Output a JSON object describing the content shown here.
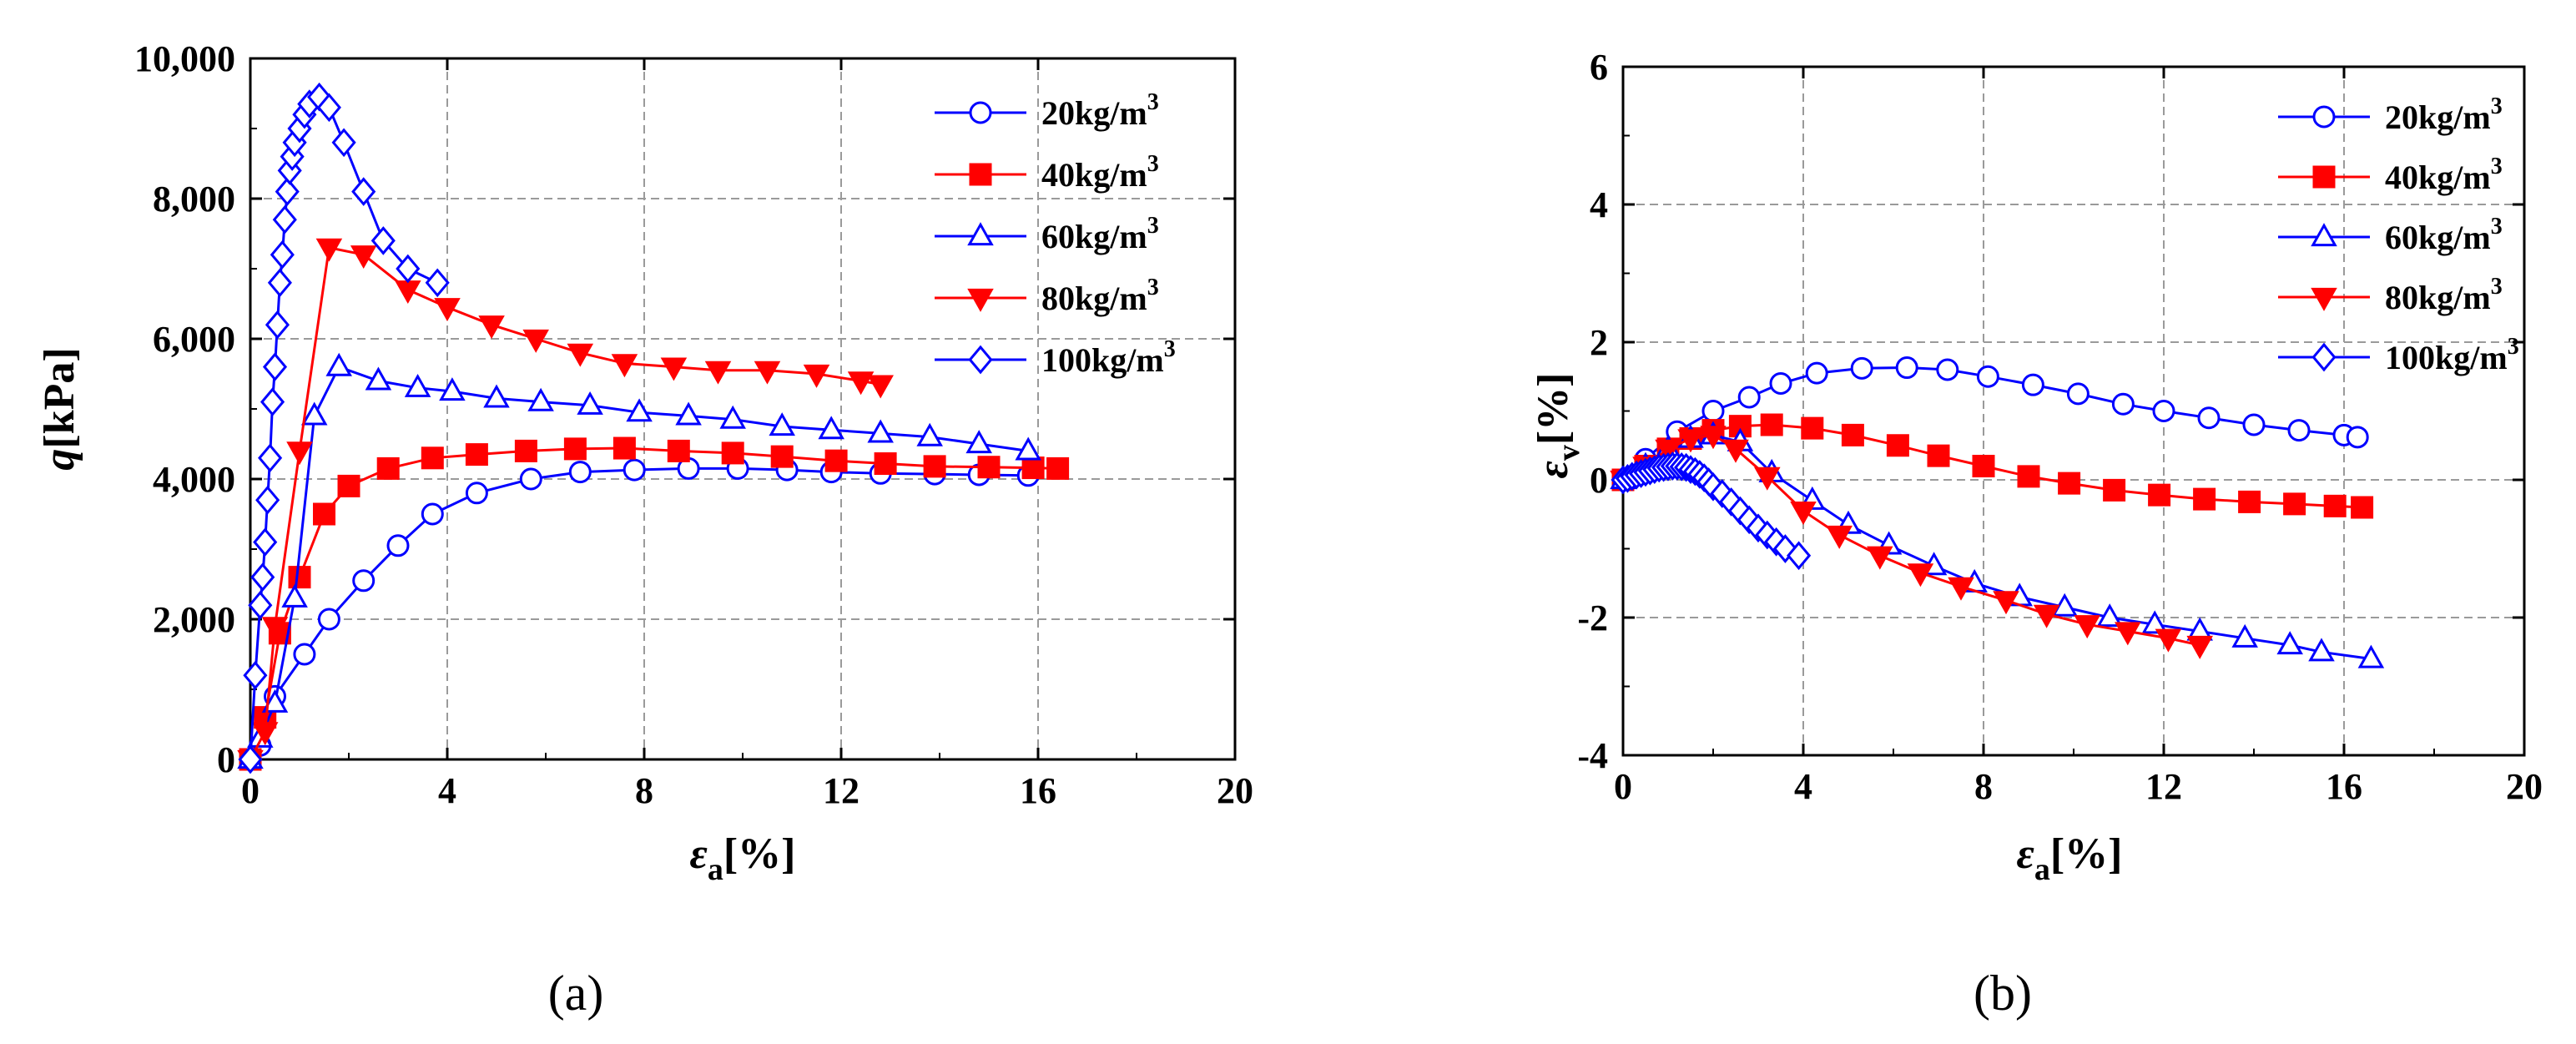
{
  "chart_data": [
    {
      "type": "line",
      "panel_label": "(a)",
      "xlabel": "ε",
      "xlabel_sub": "a",
      "xlabel_unit": "[%]",
      "ylabel": "q",
      "ylabel_unit": "[kPa]",
      "xlim": [
        0,
        20
      ],
      "ylim": [
        0,
        10000
      ],
      "xticks": [
        0,
        4,
        8,
        12,
        16,
        20
      ],
      "xtick_labels": [
        "0",
        "4",
        "8",
        "12",
        "16",
        "20"
      ],
      "yticks": [
        0,
        2000,
        4000,
        6000,
        8000,
        10000
      ],
      "ytick_labels": [
        "0",
        "2,000",
        "4,000",
        "6,000",
        "8,000",
        "10,000"
      ],
      "grid": true,
      "legend_position": "top-right",
      "series": [
        {
          "name": "20kg/m",
          "sup": "3",
          "color": "#0000ff",
          "marker": "circle",
          "filled": false,
          "x": [
            0,
            0.2,
            0.5,
            1.1,
            1.6,
            2.3,
            3.0,
            3.7,
            4.6,
            5.7,
            6.7,
            7.8,
            8.9,
            9.9,
            10.9,
            11.8,
            12.8,
            13.9,
            14.8,
            15.8
          ],
          "y": [
            0,
            200,
            900,
            1500,
            2000,
            2550,
            3050,
            3500,
            3800,
            4000,
            4100,
            4130,
            4150,
            4150,
            4130,
            4100,
            4080,
            4070,
            4060,
            4050
          ]
        },
        {
          "name": "40kg/m",
          "sup": "3",
          "color": "#ff0000",
          "marker": "square",
          "filled": true,
          "x": [
            0,
            0.3,
            0.6,
            1.0,
            1.5,
            2.0,
            2.8,
            3.7,
            4.6,
            5.6,
            6.6,
            7.6,
            8.7,
            9.8,
            10.8,
            11.9,
            12.9,
            13.9,
            15.0,
            15.9,
            16.4
          ],
          "y": [
            0,
            600,
            1800,
            2600,
            3500,
            3900,
            4150,
            4300,
            4350,
            4400,
            4430,
            4440,
            4400,
            4370,
            4320,
            4260,
            4220,
            4180,
            4170,
            4160,
            4150
          ]
        },
        {
          "name": "60kg/m",
          "sup": "3",
          "color": "#0000ff",
          "marker": "triangle-up",
          "filled": false,
          "x": [
            0,
            0.2,
            0.5,
            0.9,
            1.3,
            1.8,
            2.6,
            3.4,
            4.1,
            5.0,
            5.9,
            6.9,
            7.9,
            8.9,
            9.8,
            10.8,
            11.8,
            12.8,
            13.8,
            14.8,
            15.8
          ],
          "y": [
            0,
            300,
            800,
            2300,
            4900,
            5600,
            5400,
            5300,
            5250,
            5150,
            5100,
            5050,
            4950,
            4900,
            4850,
            4750,
            4700,
            4650,
            4600,
            4500,
            4400
          ]
        },
        {
          "name": "80kg/m",
          "sup": "3",
          "color": "#ff0000",
          "marker": "triangle-down",
          "filled": true,
          "x": [
            0,
            0.3,
            0.5,
            1.0,
            1.6,
            2.3,
            3.2,
            4.0,
            4.9,
            5.8,
            6.7,
            7.6,
            8.6,
            9.5,
            10.5,
            11.5,
            12.4,
            12.8
          ],
          "y": [
            0,
            400,
            1900,
            4400,
            7300,
            7200,
            6700,
            6450,
            6200,
            6000,
            5800,
            5650,
            5600,
            5550,
            5550,
            5500,
            5400,
            5350
          ]
        },
        {
          "name": "100kg/m",
          "sup": "3",
          "color": "#0000ff",
          "marker": "diamond",
          "filled": false,
          "x": [
            0,
            0.1,
            0.2,
            0.25,
            0.3,
            0.35,
            0.4,
            0.45,
            0.5,
            0.55,
            0.6,
            0.65,
            0.7,
            0.75,
            0.8,
            0.85,
            0.9,
            1.0,
            1.1,
            1.2,
            1.4,
            1.6,
            1.9,
            2.3,
            2.7,
            3.2,
            3.8
          ],
          "y": [
            0,
            1200,
            2200,
            2600,
            3100,
            3700,
            4300,
            5100,
            5600,
            6200,
            6800,
            7200,
            7700,
            8100,
            8400,
            8600,
            8800,
            9000,
            9200,
            9350,
            9450,
            9300,
            8800,
            8100,
            7400,
            7000,
            6800
          ]
        }
      ]
    },
    {
      "type": "line",
      "panel_label": "(b)",
      "xlabel": "ε",
      "xlabel_sub": "a",
      "xlabel_unit": "[%]",
      "ylabel": "ε",
      "ylabel_sub": "v",
      "ylabel_unit": "[%]",
      "xlim": [
        0,
        20
      ],
      "ylim": [
        -4,
        6
      ],
      "xticks": [
        0,
        4,
        8,
        12,
        16,
        20
      ],
      "xtick_labels": [
        "0",
        "4",
        "8",
        "12",
        "16",
        "20"
      ],
      "yticks": [
        -4,
        -2,
        0,
        2,
        4,
        6
      ],
      "ytick_labels": [
        "-4",
        "-2",
        "0",
        "2",
        "4",
        "6"
      ],
      "grid": true,
      "legend_position": "top-right",
      "series": [
        {
          "name": "20kg/m",
          "sup": "3",
          "color": "#0000ff",
          "marker": "circle",
          "filled": false,
          "x": [
            0,
            0.5,
            1.2,
            2.0,
            2.8,
            3.5,
            4.3,
            5.3,
            6.3,
            7.2,
            8.1,
            9.1,
            10.1,
            11.1,
            12.0,
            13.0,
            14.0,
            15.0,
            16.0,
            16.3
          ],
          "y": [
            0,
            0.3,
            0.7,
            1.0,
            1.2,
            1.4,
            1.55,
            1.62,
            1.63,
            1.6,
            1.5,
            1.38,
            1.25,
            1.1,
            1.0,
            0.9,
            0.8,
            0.72,
            0.65,
            0.62
          ]
        },
        {
          "name": "40kg/m",
          "sup": "3",
          "color": "#ff0000",
          "marker": "square",
          "filled": true,
          "x": [
            0,
            0.5,
            1.0,
            1.5,
            2.0,
            2.6,
            3.3,
            4.2,
            5.1,
            6.1,
            7.0,
            8.0,
            9.0,
            9.9,
            10.9,
            11.9,
            12.9,
            13.9,
            14.9,
            15.8,
            16.4
          ],
          "y": [
            0,
            0.2,
            0.45,
            0.6,
            0.72,
            0.78,
            0.8,
            0.75,
            0.65,
            0.5,
            0.35,
            0.2,
            0.05,
            -0.05,
            -0.15,
            -0.22,
            -0.28,
            -0.32,
            -0.35,
            -0.38,
            -0.4
          ]
        },
        {
          "name": "60kg/m",
          "sup": "3",
          "color": "#0000ff",
          "marker": "triangle-up",
          "filled": false,
          "x": [
            0,
            0.5,
            1.0,
            1.5,
            2.0,
            2.6,
            3.3,
            4.2,
            5.0,
            5.9,
            6.9,
            7.8,
            8.8,
            9.8,
            10.8,
            11.8,
            12.8,
            13.8,
            14.8,
            15.5,
            16.6
          ],
          "y": [
            0,
            0.2,
            0.45,
            0.6,
            0.65,
            0.55,
            0.1,
            -0.3,
            -0.65,
            -0.95,
            -1.25,
            -1.5,
            -1.7,
            -1.85,
            -2.0,
            -2.1,
            -2.2,
            -2.3,
            -2.4,
            -2.5,
            -2.6
          ]
        },
        {
          "name": "80kg/m",
          "sup": "3",
          "color": "#ff0000",
          "marker": "triangle-down",
          "filled": true,
          "x": [
            0,
            0.5,
            1.0,
            1.5,
            2.0,
            2.5,
            3.2,
            4.0,
            4.8,
            5.7,
            6.6,
            7.5,
            8.5,
            9.4,
            10.3,
            11.2,
            12.1,
            12.8
          ],
          "y": [
            0,
            0.2,
            0.45,
            0.6,
            0.65,
            0.45,
            0.05,
            -0.45,
            -0.8,
            -1.1,
            -1.35,
            -1.55,
            -1.75,
            -1.95,
            -2.1,
            -2.2,
            -2.3,
            -2.4
          ]
        },
        {
          "name": "100kg/m",
          "sup": "3",
          "color": "#0000ff",
          "marker": "diamond",
          "filled": false,
          "x": [
            0,
            0.1,
            0.2,
            0.3,
            0.4,
            0.5,
            0.6,
            0.7,
            0.8,
            0.9,
            1.0,
            1.1,
            1.2,
            1.3,
            1.4,
            1.5,
            1.6,
            1.7,
            1.8,
            1.9,
            2.0,
            2.2,
            2.4,
            2.6,
            2.8,
            3.0,
            3.2,
            3.4,
            3.6,
            3.9
          ],
          "y": [
            0,
            0.02,
            0.05,
            0.07,
            0.09,
            0.11,
            0.13,
            0.15,
            0.17,
            0.18,
            0.19,
            0.2,
            0.2,
            0.19,
            0.18,
            0.15,
            0.12,
            0.08,
            0.03,
            -0.03,
            -0.1,
            -0.2,
            -0.32,
            -0.45,
            -0.58,
            -0.7,
            -0.8,
            -0.9,
            -1.0,
            -1.1
          ]
        }
      ]
    }
  ]
}
